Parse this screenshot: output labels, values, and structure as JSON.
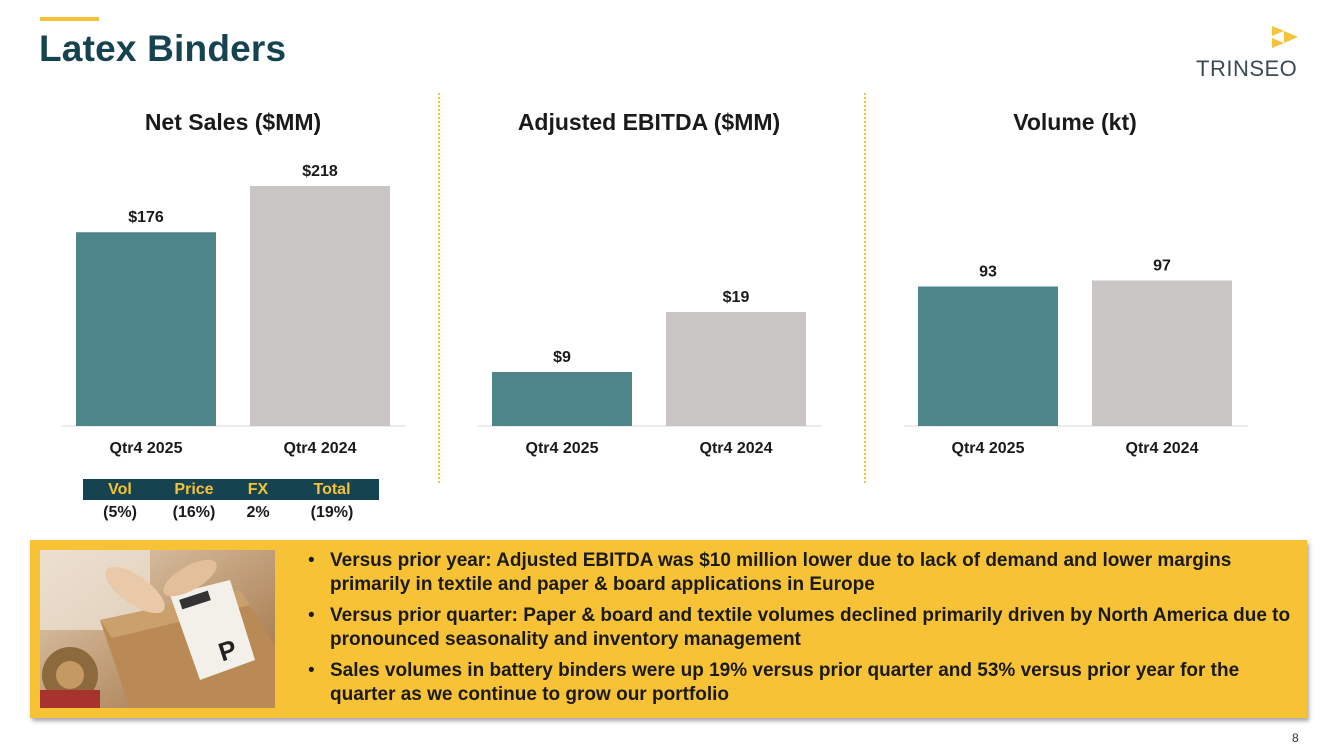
{
  "title": "Latex Binders",
  "logo": {
    "text": "TRINSEO",
    "icon": "trinseo-arrow-logo-icon"
  },
  "colors": {
    "current": "#4e858a",
    "prior": "#c9c5c4",
    "accent": "#f5c23a",
    "title": "#15434f",
    "callout": "#f8c236"
  },
  "chart_data": [
    {
      "type": "bar",
      "title": "Net Sales ($MM)",
      "categories": [
        "Qtr4 2025",
        "Qtr4 2024"
      ],
      "values": [
        176,
        218
      ],
      "value_labels": [
        "$176",
        "$218"
      ],
      "ylim": [
        0,
        218
      ]
    },
    {
      "type": "bar",
      "title": "Adjusted EBITDA ($MM)",
      "categories": [
        "Qtr4 2025",
        "Qtr4 2024"
      ],
      "values": [
        9,
        19
      ],
      "value_labels": [
        "$9",
        "$19"
      ],
      "ylim": [
        0,
        40
      ]
    },
    {
      "type": "bar",
      "title": "Volume (kt)",
      "categories": [
        "Qtr4 2025",
        "Qtr4 2024"
      ],
      "values": [
        93,
        97
      ],
      "value_labels": [
        "93",
        "97"
      ],
      "ylim": [
        0,
        160
      ]
    }
  ],
  "bridge": {
    "headers": [
      "Vol",
      "Price",
      "FX",
      "Total"
    ],
    "values": [
      "(5%)",
      "(16%)",
      "2%",
      "(19%)"
    ]
  },
  "callout": {
    "image": "shipping-package-photo",
    "bullets": [
      "Versus prior year: Adjusted EBITDA was $10 million lower due to lack of demand and lower margins primarily in textile and paper & board applications in Europe",
      "Versus prior quarter: Paper & board and textile volumes declined primarily driven by North America due to pronounced seasonality and inventory management",
      "Sales volumes in battery binders were up 19% versus prior quarter and 53% versus prior year for the quarter as we continue to grow our portfolio"
    ]
  },
  "page_number": "8"
}
